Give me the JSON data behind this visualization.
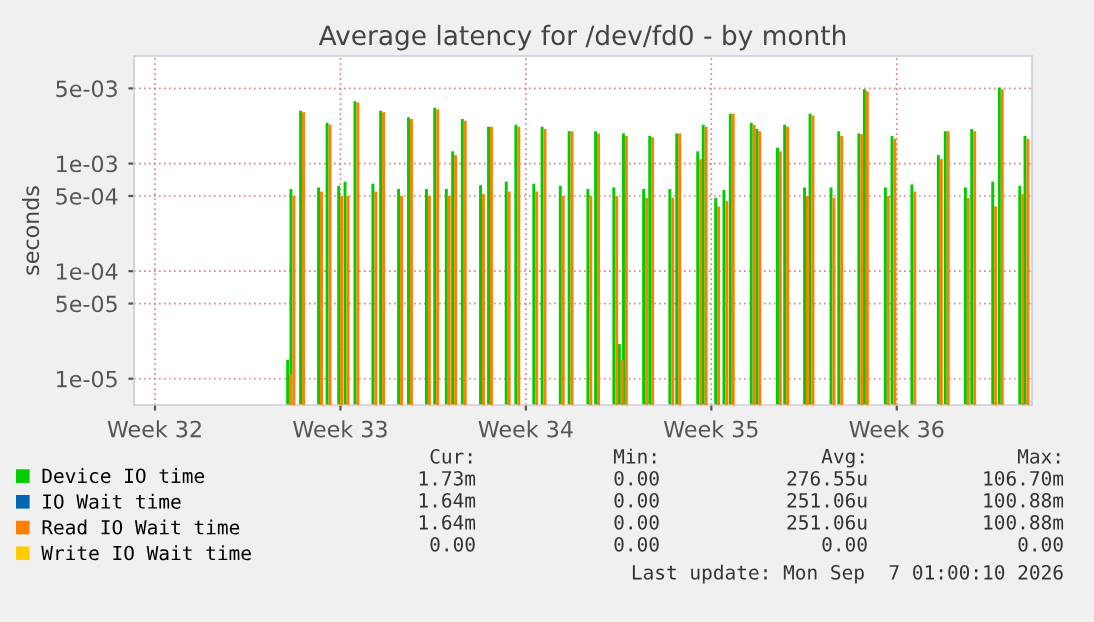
{
  "chart_data": {
    "type": "bar",
    "title": "Average latency for /dev/fd0 - by month",
    "ylabel": "seconds",
    "x": [
      "2026-08-08T01:30",
      "2026-08-08T04:30",
      "2026-08-08T13:15",
      "2026-08-09T05:30",
      "2026-08-09T13:15",
      "2026-08-09T23:45",
      "2026-08-10T05:30",
      "2026-08-10T14:30",
      "2026-08-11T06:45",
      "2026-08-11T13:45",
      "2026-08-12T06:00",
      "2026-08-12T15:00",
      "2026-08-13T07:15",
      "2026-08-13T14:45",
      "2026-08-14T01:15",
      "2026-08-14T07:00",
      "2026-08-14T15:45",
      "2026-08-15T08:15",
      "2026-08-15T15:30",
      "2026-08-16T07:30",
      "2026-08-16T16:15",
      "2026-08-17T08:30",
      "2026-08-17T16:00",
      "2026-08-18T08:30",
      "2026-08-18T16:30",
      "2026-08-19T09:30",
      "2026-08-19T16:30",
      "2026-08-20T09:00",
      "2026-08-20T14:00",
      "2026-08-20T17:45",
      "2026-08-21T12:00",
      "2026-08-21T17:30",
      "2026-08-22T11:45",
      "2026-08-22T18:00",
      "2026-08-23T13:00",
      "2026-08-23T18:00",
      "2026-08-24T05:15",
      "2026-08-24T12:45",
      "2026-08-24T18:30",
      "2026-08-25T13:30",
      "2026-08-25T18:30",
      "2026-08-26T13:15",
      "2026-08-26T19:45",
      "2026-08-27T13:45",
      "2026-08-27T18:45",
      "2026-08-28T13:45",
      "2026-08-28T20:45",
      "2026-08-29T15:00",
      "2026-08-29T20:00",
      "2026-08-30T15:00",
      "2026-08-30T21:00",
      "2026-08-31T15:00",
      "2026-09-01T15:00",
      "2026-09-01T21:15",
      "2026-09-02T15:30",
      "2026-09-02T21:15",
      "2026-09-03T16:15",
      "2026-09-03T22:15",
      "2026-09-04T16:45",
      "2026-09-04T21:30"
    ],
    "series": [
      {
        "name": "Device IO time",
        "color": "#00cc00",
        "values": [
          1.5e-05,
          0.00058,
          0.0031,
          0.0006,
          0.0024,
          0.00062,
          0.00068,
          0.0038,
          0.00065,
          0.0031,
          0.00058,
          0.0027,
          0.00058,
          0.0033,
          0.00058,
          0.0013,
          0.0026,
          0.00063,
          0.0022,
          0.00068,
          0.0023,
          0.00065,
          0.0022,
          0.00062,
          0.002,
          0.00058,
          0.002,
          0.0006,
          2.1e-05,
          0.0019,
          0.00058,
          0.0018,
          0.00058,
          0.0019,
          0.0013,
          0.0023,
          0.00048,
          0.00057,
          0.0029,
          0.0024,
          0.0021,
          0.0014,
          0.0023,
          0.0006,
          0.0029,
          0.0006,
          0.002,
          0.0019,
          0.0049,
          0.0006,
          0.0018,
          0.00064,
          0.0012,
          0.002,
          0.0006,
          0.0021,
          0.00068,
          0.0051,
          0.00062,
          0.0018
        ]
      },
      {
        "name": "IO Wait time",
        "color": "#0066b3",
        "values": [
          null,
          null,
          null,
          null,
          null,
          null,
          null,
          null,
          null,
          null,
          null,
          null,
          null,
          null,
          null,
          null,
          null,
          null,
          null,
          null,
          null,
          null,
          null,
          null,
          null,
          null,
          null,
          null,
          null,
          null,
          null,
          null,
          null,
          null,
          null,
          null,
          null,
          null,
          null,
          null,
          null,
          null,
          null,
          null,
          null,
          null,
          null,
          null,
          null,
          null,
          null,
          null,
          null,
          null,
          null,
          null,
          null,
          null,
          null,
          null
        ]
      },
      {
        "name": "Read IO Wait time",
        "color": "#ff8000",
        "values": [
          1.1e-05,
          0.0005,
          0.003,
          0.00055,
          0.0023,
          0.0005,
          0.0005,
          0.0037,
          0.00055,
          0.003,
          0.0005,
          0.0026,
          0.0005,
          0.0032,
          0.0005,
          0.0012,
          0.0025,
          0.00052,
          0.0022,
          0.00055,
          0.0022,
          0.00055,
          0.0021,
          0.0005,
          0.002,
          0.0005,
          0.0019,
          0.0005,
          1.5e-05,
          0.0018,
          0.00048,
          0.00176,
          0.00048,
          0.0019,
          0.0011,
          0.0022,
          0.0004,
          0.00045,
          0.0029,
          0.0023,
          0.002,
          0.0013,
          0.0022,
          0.0005,
          0.0028,
          0.00048,
          0.0018,
          0.00187,
          0.0047,
          0.0005,
          0.0017,
          0.00055,
          0.0011,
          0.002,
          0.00048,
          0.002,
          0.0004,
          0.0049,
          0.00052,
          0.0017
        ]
      },
      {
        "name": "Write IO Wait time",
        "color": "#ffcc00",
        "values": [
          null,
          null,
          null,
          null,
          null,
          null,
          null,
          null,
          null,
          null,
          null,
          null,
          null,
          null,
          null,
          null,
          null,
          null,
          null,
          null,
          null,
          null,
          null,
          null,
          null,
          null,
          null,
          null,
          null,
          null,
          null,
          null,
          null,
          null,
          null,
          null,
          null,
          null,
          null,
          null,
          null,
          null,
          null,
          null,
          null,
          null,
          null,
          null,
          null,
          null,
          null,
          null,
          null,
          null,
          null,
          null,
          null,
          null,
          null,
          null
        ]
      }
    ],
    "xlim": [
      "2026-08-02T05:00",
      "2026-09-05T02:30"
    ],
    "xticks": [
      {
        "value": "2026-08-03",
        "label": "Week 32"
      },
      {
        "value": "2026-08-10",
        "label": "Week 33"
      },
      {
        "value": "2026-08-17",
        "label": "Week 34"
      },
      {
        "value": "2026-08-24",
        "label": "Week 35"
      },
      {
        "value": "2026-08-31",
        "label": "Week 36"
      }
    ],
    "log": true,
    "ylim": [
      5.7e-06,
      0.01
    ],
    "yticks": [
      {
        "value": 1e-05,
        "label": "1e-05"
      },
      {
        "value": 5e-05,
        "label": "5e-05"
      },
      {
        "value": 0.0001,
        "label": "1e-04"
      },
      {
        "value": 0.0005,
        "label": "5e-04"
      },
      {
        "value": 0.001,
        "label": "1e-03"
      },
      {
        "value": 0.005,
        "label": "5e-03"
      }
    ],
    "grid": true,
    "legend": "bottom",
    "annotations": [
      "Cur:",
      "Min:",
      "Avg:",
      "Max:",
      "1.73m",
      "0.00",
      "276.55u",
      "106.70m",
      "1.64m",
      "0.00",
      "251.06u",
      "100.88m",
      "1.64m",
      "0.00",
      "251.06u",
      "100.88m",
      "0.00",
      "0.00",
      "0.00",
      "0.00",
      "Last update: Mon Sep  7 01:00:10 2026"
    ]
  }
}
